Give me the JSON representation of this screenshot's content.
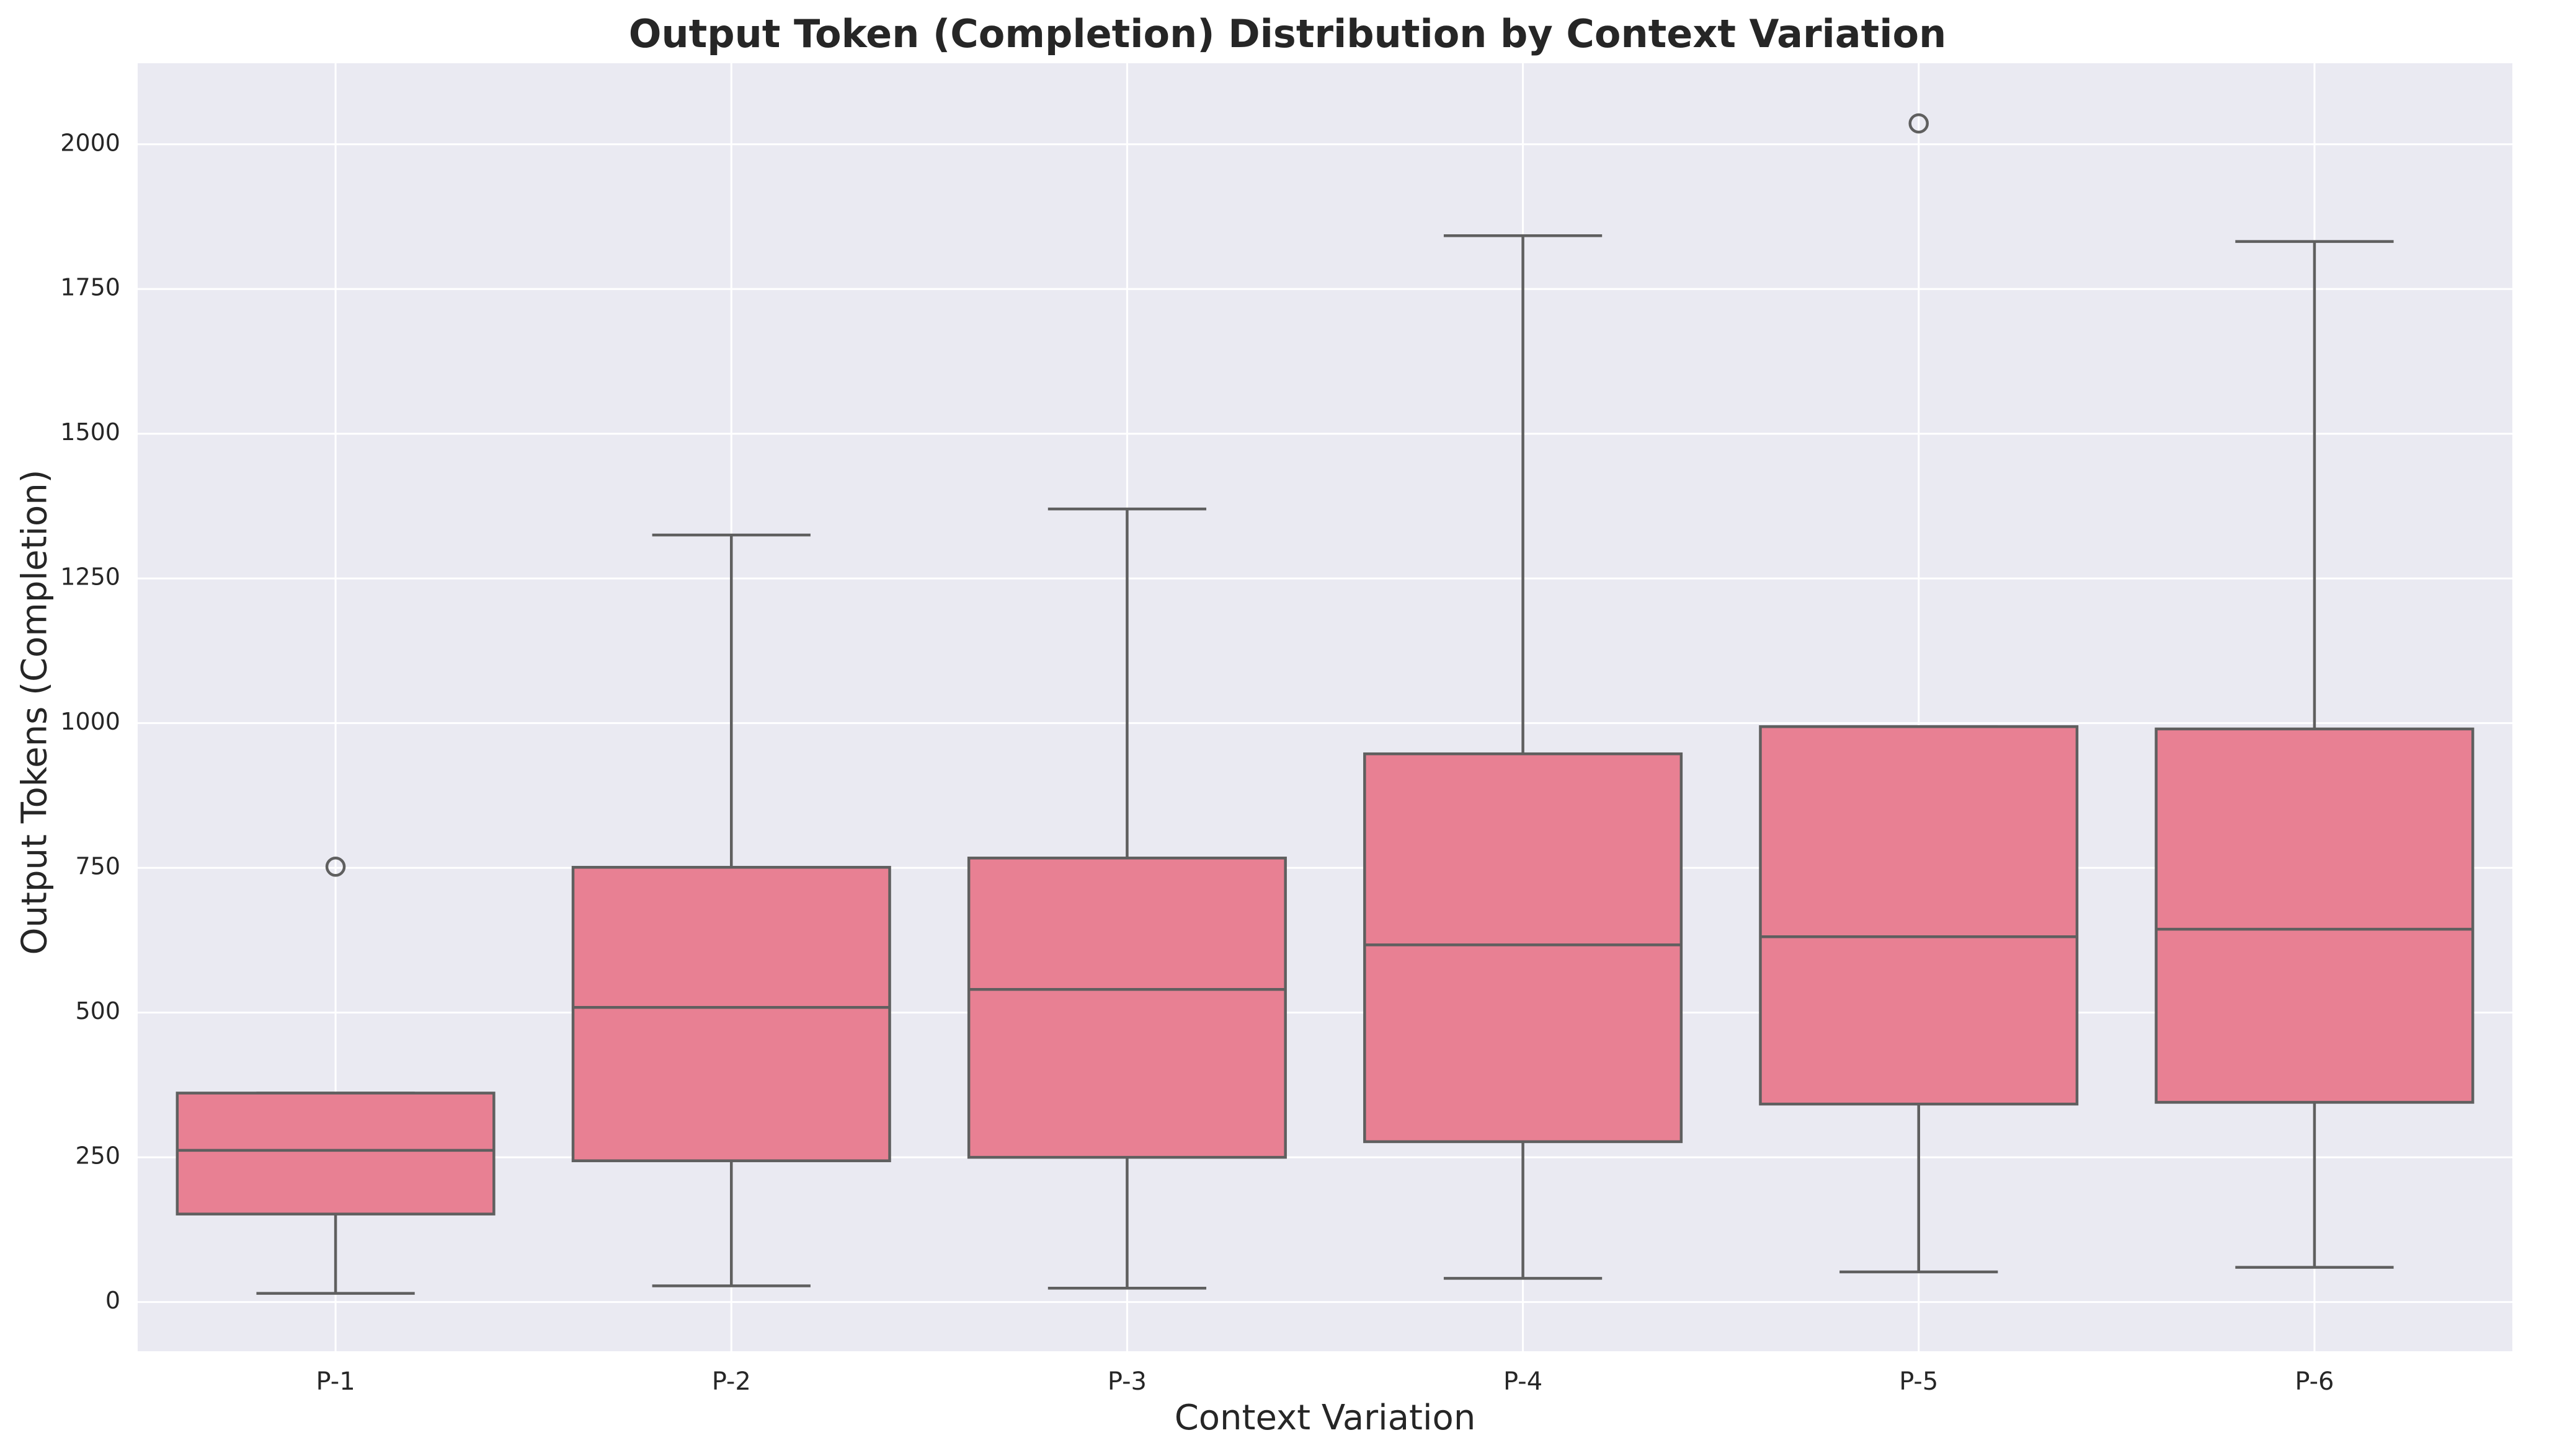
{
  "chart_data": {
    "type": "box",
    "title": "Output Token (Completion) Distribution by Context Variation",
    "xlabel": "Context Variation",
    "ylabel": "Output Tokens (Completion)",
    "ylim": [
      -85,
      2140
    ],
    "yticks": [
      0,
      250,
      500,
      750,
      1000,
      1250,
      1500,
      1750,
      2000
    ],
    "grid": true,
    "colors": {
      "plot_background": "#EAEAF2",
      "box_fill": "#E88093",
      "box_edge": "#5F5F5F",
      "grid": "#FFFFFF",
      "text": "#262626"
    },
    "categories": [
      "P-1",
      "P-2",
      "P-3",
      "P-4",
      "P-5",
      "P-6"
    ],
    "boxes": [
      {
        "label": "P-1",
        "whisker_low": 15,
        "q1": 152,
        "median": 262,
        "q3": 361,
        "whisker_high": 361,
        "outliers": [
          752
        ]
      },
      {
        "label": "P-2",
        "whisker_low": 28,
        "q1": 244,
        "median": 509,
        "q3": 751,
        "whisker_high": 1325,
        "outliers": []
      },
      {
        "label": "P-3",
        "whisker_low": 24,
        "q1": 250,
        "median": 540,
        "q3": 767,
        "whisker_high": 1370,
        "outliers": []
      },
      {
        "label": "P-4",
        "whisker_low": 41,
        "q1": 277,
        "median": 617,
        "q3": 947,
        "whisker_high": 1842,
        "outliers": []
      },
      {
        "label": "P-5",
        "whisker_low": 52,
        "q1": 342,
        "median": 631,
        "q3": 994,
        "whisker_high": 994,
        "outliers": [
          2036
        ]
      },
      {
        "label": "P-6",
        "whisker_low": 60,
        "q1": 345,
        "median": 644,
        "q3": 990,
        "whisker_high": 1832,
        "outliers": []
      }
    ]
  }
}
